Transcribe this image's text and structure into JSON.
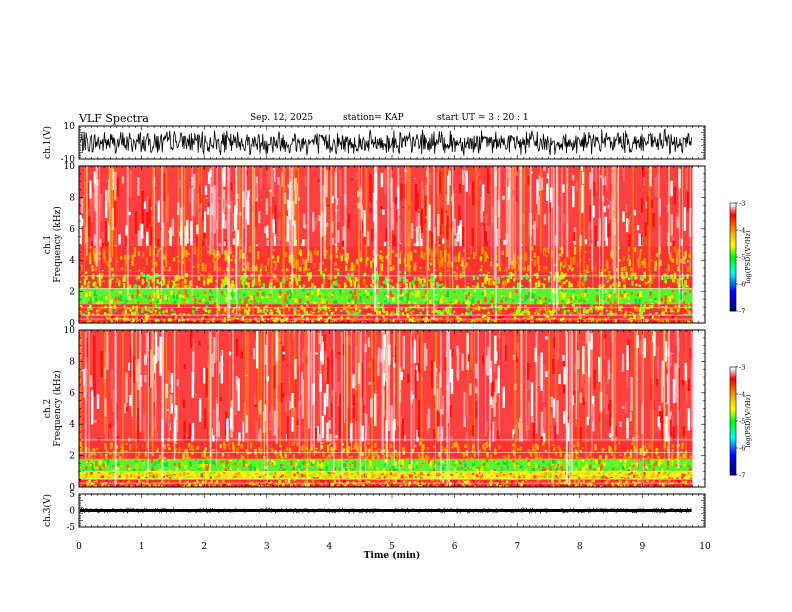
{
  "header": {
    "title": "VLF Spectra",
    "date": "Sep. 12, 2025",
    "station": "station= KAP",
    "start": "start  UT  =   3 : 20 : 1"
  },
  "chart_data": {
    "type": "heatmap",
    "x": {
      "label": "Time  (min)",
      "range": [
        0,
        10
      ],
      "ticks": [
        0,
        1,
        2,
        3,
        4,
        5,
        6,
        7,
        8,
        9,
        10
      ],
      "data_end": 9.8
    },
    "panels": [
      {
        "id": "ch1-waveform",
        "type": "line",
        "ylabel": "ch.1(V)",
        "ylim": [
          -10,
          10
        ],
        "ytick_labels": [
          "10",
          "-10"
        ],
        "amplitude_range": [
          -8,
          8
        ]
      },
      {
        "id": "ch1-spectrogram",
        "type": "heatmap",
        "ylabel_line1": "ch.1",
        "ylabel_line2": "Frequency  (kHz)",
        "ylim": [
          0,
          10
        ],
        "yticks": [
          0,
          2,
          4,
          6,
          8,
          10
        ],
        "bands": [
          {
            "from": 0,
            "to": 0.5,
            "level": "red-orange"
          },
          {
            "from": 0.5,
            "to": 1.2,
            "level": "yellow-green"
          },
          {
            "from": 1.2,
            "to": 2.2,
            "level": "green-yellow"
          },
          {
            "from": 2.2,
            "to": 3.3,
            "level": "yellow-green"
          },
          {
            "from": 3.3,
            "to": 4.9,
            "level": "orange-yellow"
          },
          {
            "from": 4.9,
            "to": 10,
            "level": "red-white"
          }
        ],
        "colorbar": {
          "label": "log(PSD)(V²/Hz)",
          "range": [
            -7,
            -3
          ],
          "ticks": [
            -7,
            -6,
            -5,
            -4,
            -3
          ],
          "tick_labels": [
            "-7",
            "-6",
            "-5",
            "-4",
            "-3"
          ]
        }
      },
      {
        "id": "ch2-spectrogram",
        "type": "heatmap",
        "ylabel_line1": "ch.2",
        "ylabel_line2": "Frequency  (kHz)",
        "ylim": [
          0,
          10
        ],
        "yticks": [
          0,
          2,
          4,
          6,
          8,
          10
        ],
        "bands": [
          {
            "from": 0,
            "to": 0.5,
            "level": "red-orange"
          },
          {
            "from": 0.5,
            "to": 1.0,
            "level": "yellow"
          },
          {
            "from": 1.0,
            "to": 1.8,
            "level": "green-yellow"
          },
          {
            "from": 1.8,
            "to": 2.9,
            "level": "orange-yellow"
          },
          {
            "from": 2.9,
            "to": 10,
            "level": "red-white"
          }
        ],
        "colorbar": {
          "label": "log(PSD)(V²/Hz)",
          "range": [
            -7,
            -3
          ],
          "ticks": [
            -7,
            -6,
            -5,
            -4,
            -3
          ],
          "tick_labels": [
            "-7",
            "-6",
            "-5",
            "-4",
            "-3"
          ]
        }
      },
      {
        "id": "ch3-waveform",
        "type": "line",
        "ylabel": "ch.3(V)",
        "ylim": [
          -5,
          5
        ],
        "ytick_labels": [
          "5",
          "0",
          "-5"
        ],
        "amplitude_range": [
          -0.5,
          0.5
        ]
      }
    ]
  }
}
